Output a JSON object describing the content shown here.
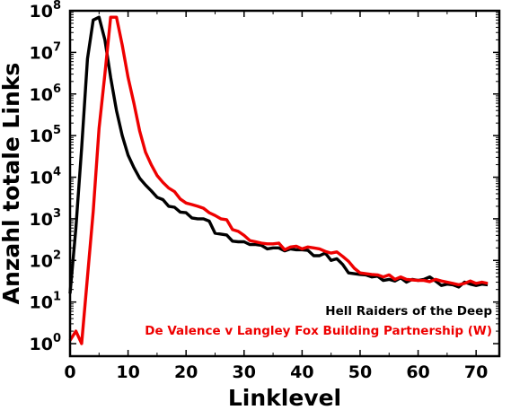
{
  "chart_data": {
    "type": "line",
    "xlabel": "Linklevel",
    "ylabel": "Anzahl totale Links",
    "yscale": "log",
    "xlim": [
      0,
      74
    ],
    "ylim": [
      0.5,
      100000000
    ],
    "x_ticks": [
      {
        "value": 0,
        "label": "0"
      },
      {
        "value": 10,
        "label": "10"
      },
      {
        "value": 20,
        "label": "20"
      },
      {
        "value": 30,
        "label": "30"
      },
      {
        "value": 40,
        "label": "40"
      },
      {
        "value": 50,
        "label": "50"
      },
      {
        "value": 60,
        "label": "60"
      },
      {
        "value": 70,
        "label": "70"
      }
    ],
    "y_ticks": [
      {
        "exp": 0,
        "base": "10",
        "sup": "0"
      },
      {
        "exp": 1,
        "base": "10",
        "sup": "1"
      },
      {
        "exp": 2,
        "base": "10",
        "sup": "2"
      },
      {
        "exp": 3,
        "base": "10",
        "sup": "3"
      },
      {
        "exp": 4,
        "base": "10",
        "sup": "4"
      },
      {
        "exp": 5,
        "base": "10",
        "sup": "5"
      },
      {
        "exp": 6,
        "base": "10",
        "sup": "6"
      },
      {
        "exp": 7,
        "base": "10",
        "sup": "7"
      },
      {
        "exp": 8,
        "base": "10",
        "sup": "8"
      }
    ],
    "legend_position": "bottom-right",
    "grid": false,
    "series": [
      {
        "name": "Hell Raiders of the Deep",
        "color": "#000000",
        "points": [
          [
            0,
            16
          ],
          [
            1,
            600
          ],
          [
            2,
            50000
          ],
          [
            3,
            7000000
          ],
          [
            4,
            60000000
          ],
          [
            5,
            70000000
          ],
          [
            6,
            20000000
          ],
          [
            7,
            2500000
          ],
          [
            8,
            400000
          ],
          [
            9,
            100000
          ],
          [
            10,
            34000
          ],
          [
            11,
            17000
          ],
          [
            12,
            9500
          ],
          [
            13,
            6500
          ],
          [
            14,
            4700
          ],
          [
            15,
            3300
          ],
          [
            16,
            2900
          ],
          [
            17,
            2000
          ],
          [
            18,
            1900
          ],
          [
            19,
            1450
          ],
          [
            20,
            1400
          ],
          [
            21,
            1050
          ],
          [
            22,
            1000
          ],
          [
            23,
            1000
          ],
          [
            24,
            880
          ],
          [
            25,
            450
          ],
          [
            26,
            430
          ],
          [
            27,
            410
          ],
          [
            28,
            290
          ],
          [
            29,
            280
          ],
          [
            30,
            280
          ],
          [
            31,
            240
          ],
          [
            32,
            240
          ],
          [
            33,
            230
          ],
          [
            34,
            190
          ],
          [
            35,
            200
          ],
          [
            36,
            200
          ],
          [
            37,
            170
          ],
          [
            38,
            190
          ],
          [
            39,
            180
          ],
          [
            40,
            180
          ],
          [
            41,
            175
          ],
          [
            42,
            130
          ],
          [
            43,
            130
          ],
          [
            44,
            150
          ],
          [
            45,
            100
          ],
          [
            46,
            110
          ],
          [
            47,
            80
          ],
          [
            48,
            50
          ],
          [
            49,
            48
          ],
          [
            50,
            46
          ],
          [
            51,
            45
          ],
          [
            52,
            40
          ],
          [
            53,
            42
          ],
          [
            54,
            33
          ],
          [
            55,
            35
          ],
          [
            56,
            32
          ],
          [
            57,
            38
          ],
          [
            58,
            30
          ],
          [
            59,
            35
          ],
          [
            60,
            33
          ],
          [
            61,
            35
          ],
          [
            62,
            40
          ],
          [
            63,
            32
          ],
          [
            64,
            25
          ],
          [
            65,
            27
          ],
          [
            66,
            26
          ],
          [
            67,
            23
          ],
          [
            68,
            30
          ],
          [
            69,
            27
          ],
          [
            70,
            25
          ],
          [
            71,
            27
          ],
          [
            72,
            26
          ]
        ]
      },
      {
        "name": "De Valence v Langley Fox Building Partnership (W)",
        "color": "#ee0000",
        "points": [
          [
            0,
            1.2
          ],
          [
            1,
            2
          ],
          [
            2,
            1
          ],
          [
            3,
            40
          ],
          [
            4,
            1500
          ],
          [
            5,
            150000
          ],
          [
            6,
            3000000
          ],
          [
            7,
            70000000
          ],
          [
            8,
            70000000
          ],
          [
            9,
            15000000
          ],
          [
            10,
            2500000
          ],
          [
            11,
            600000
          ],
          [
            12,
            130000
          ],
          [
            13,
            40000
          ],
          [
            14,
            20000
          ],
          [
            15,
            11000
          ],
          [
            16,
            7500
          ],
          [
            17,
            5500
          ],
          [
            18,
            4500
          ],
          [
            19,
            3000
          ],
          [
            20,
            2400
          ],
          [
            21,
            2200
          ],
          [
            22,
            2000
          ],
          [
            23,
            1800
          ],
          [
            24,
            1400
          ],
          [
            25,
            1200
          ],
          [
            26,
            1000
          ],
          [
            27,
            950
          ],
          [
            28,
            550
          ],
          [
            29,
            500
          ],
          [
            30,
            400
          ],
          [
            31,
            300
          ],
          [
            32,
            280
          ],
          [
            33,
            260
          ],
          [
            34,
            250
          ],
          [
            35,
            250
          ],
          [
            36,
            260
          ],
          [
            37,
            180
          ],
          [
            38,
            210
          ],
          [
            39,
            220
          ],
          [
            40,
            190
          ],
          [
            41,
            210
          ],
          [
            42,
            200
          ],
          [
            43,
            190
          ],
          [
            44,
            165
          ],
          [
            45,
            150
          ],
          [
            46,
            160
          ],
          [
            47,
            125
          ],
          [
            48,
            95
          ],
          [
            49,
            65
          ],
          [
            50,
            50
          ],
          [
            51,
            48
          ],
          [
            52,
            46
          ],
          [
            53,
            45
          ],
          [
            54,
            40
          ],
          [
            55,
            45
          ],
          [
            56,
            35
          ],
          [
            57,
            40
          ],
          [
            58,
            35
          ],
          [
            59,
            34
          ],
          [
            60,
            33
          ],
          [
            61,
            33
          ],
          [
            62,
            31
          ],
          [
            63,
            35
          ],
          [
            64,
            32
          ],
          [
            65,
            30
          ],
          [
            66,
            28
          ],
          [
            67,
            26
          ],
          [
            68,
            28
          ],
          [
            69,
            32
          ],
          [
            70,
            28
          ],
          [
            71,
            30
          ],
          [
            72,
            28
          ]
        ]
      }
    ]
  }
}
